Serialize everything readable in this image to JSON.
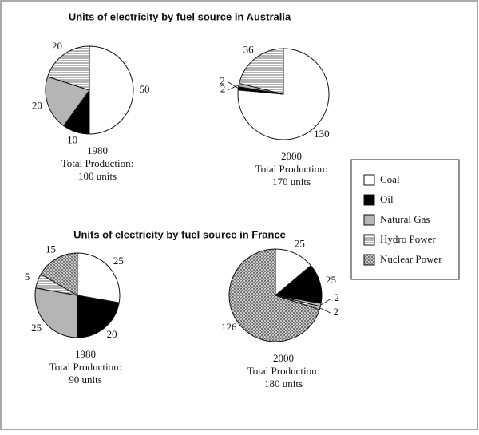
{
  "chart_data": [
    {
      "type": "pie",
      "title": "Units of electricity by fuel source in Australia",
      "categories": [
        "Coal",
        "Oil",
        "Natural Gas",
        "Hydro Power"
      ],
      "values": [
        50,
        10,
        20,
        20
      ],
      "fills": [
        "white",
        "black",
        "gray",
        "hlines"
      ],
      "caption": [
        "1980",
        "Total Production:",
        "100 units"
      ]
    },
    {
      "type": "pie",
      "categories": [
        "Coal",
        "Oil",
        "Natural Gas",
        "Hydro Power"
      ],
      "values": [
        130,
        2,
        2,
        36
      ],
      "fills": [
        "white",
        "black",
        "gray",
        "hlines"
      ],
      "caption": [
        "2000",
        "Total Production:",
        "170 units"
      ]
    },
    {
      "type": "pie",
      "title": "Units of electricity by fuel source in  France",
      "categories": [
        "Coal",
        "Oil",
        "Natural Gas",
        "Hydro Power",
        "Nuclear Power"
      ],
      "values": [
        25,
        20,
        25,
        5,
        15
      ],
      "fills": [
        "white",
        "black",
        "gray",
        "hlines",
        "dots"
      ],
      "caption": [
        "1980",
        "Total Production:",
        "90 units"
      ]
    },
    {
      "type": "pie",
      "categories": [
        "Coal",
        "Oil",
        "Natural Gas",
        "Hydro Power",
        "Nuclear Power"
      ],
      "values": [
        25,
        25,
        2,
        2,
        126
      ],
      "fills": [
        "white",
        "black",
        "gray",
        "hlines",
        "dots"
      ],
      "caption": [
        "2000",
        "Total Production:",
        "180 units"
      ]
    }
  ]
}
